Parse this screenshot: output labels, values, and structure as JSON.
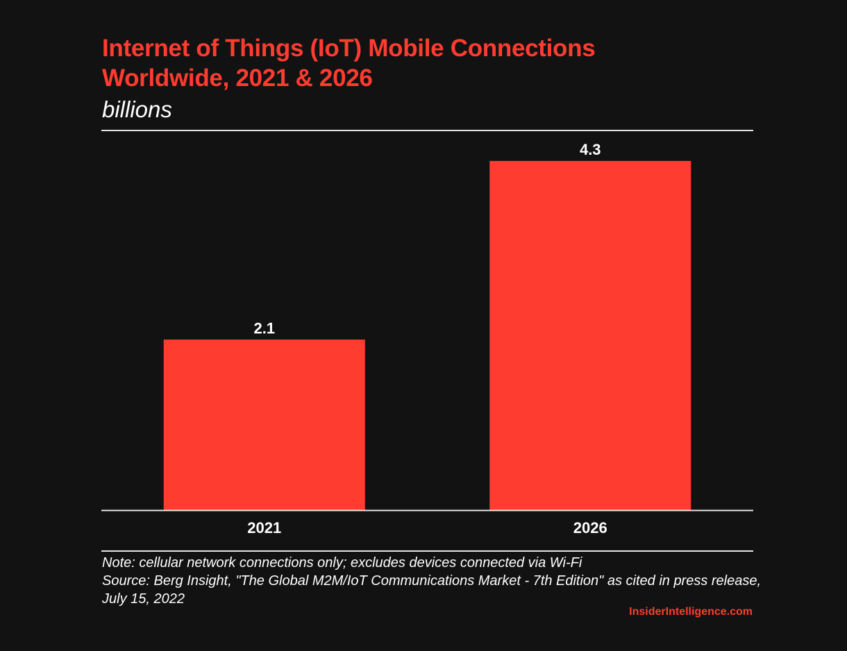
{
  "header": {
    "title_line1": "Internet of Things (IoT) Mobile Connections",
    "title_line2": "Worldwide, 2021 & 2026",
    "subtitle": "billions"
  },
  "footer": {
    "note": "Note: cellular network connections only; excludes devices connected via Wi-Fi",
    "source": "Source: Berg Insight, \"The Global M2M/IoT Communications Market - 7th Edition\" as cited in press release, July 15, 2022",
    "brand": "InsiderIntelligence.com"
  },
  "colors": {
    "accent": "#ff3c2f",
    "background": "#121212",
    "text": "#ffffff"
  },
  "chart_data": {
    "type": "bar",
    "title": "Internet of Things (IoT) Mobile Connections Worldwide, 2021 & 2026",
    "subtitle": "billions",
    "xlabel": "",
    "ylabel": "billions",
    "categories": [
      "2021",
      "2026"
    ],
    "values": [
      2.1,
      4.3
    ],
    "data_labels": [
      "2.1",
      "4.3"
    ],
    "ylim": [
      0,
      4.6
    ],
    "grid": false,
    "legend": "none"
  }
}
